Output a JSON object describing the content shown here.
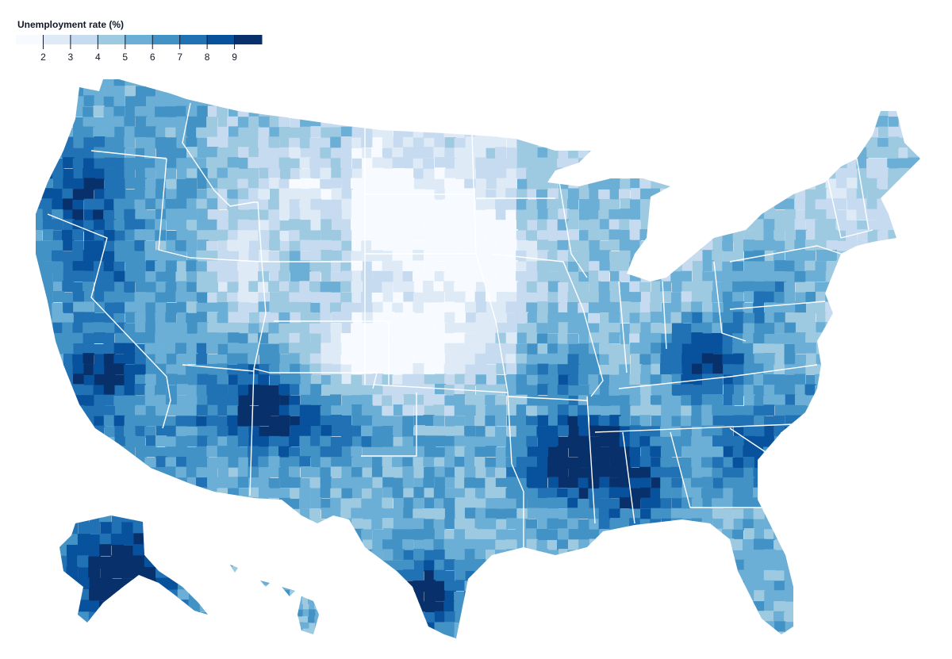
{
  "legend": {
    "title": "Unemployment rate (%)",
    "thresholds": [
      2,
      3,
      4,
      5,
      6,
      7,
      8,
      9
    ],
    "colors": [
      "#f7fbff",
      "#deebf7",
      "#c6dbef",
      "#9ecae1",
      "#6baed6",
      "#4292c6",
      "#2171b5",
      "#08519c",
      "#08306b"
    ],
    "tick_labels": [
      "2",
      "3",
      "4",
      "5",
      "6",
      "7",
      "8",
      "9"
    ]
  },
  "map": {
    "subject": "US counties unemployment choropleth",
    "scheme": "blues",
    "rate_domain": [
      1,
      10
    ]
  }
}
